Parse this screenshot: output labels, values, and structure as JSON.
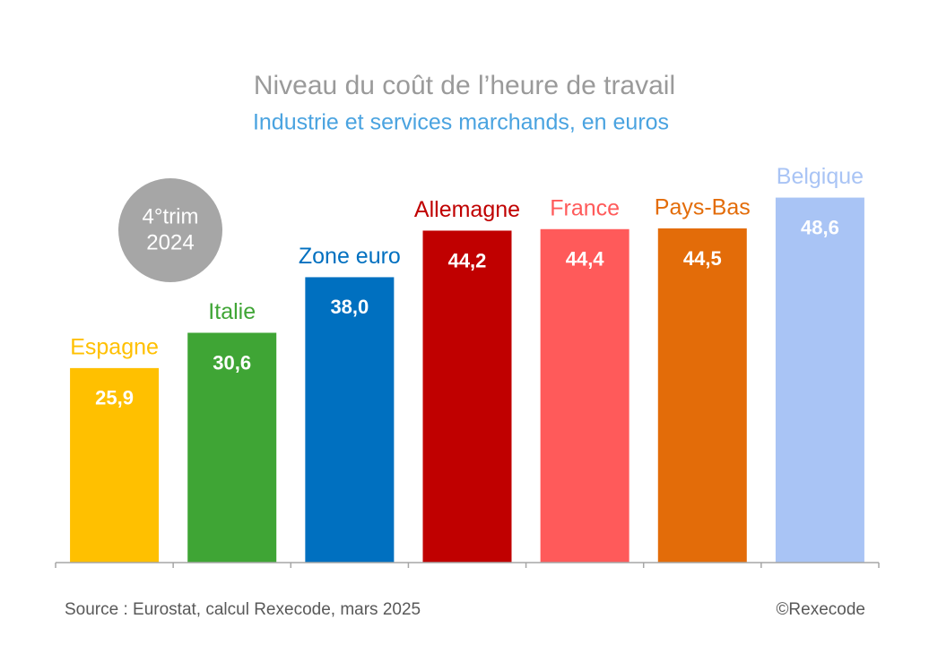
{
  "chart_data": {
    "type": "bar",
    "title": "Niveau du coût de l’heure de travail",
    "subtitle": "Industrie et services marchands, en euros",
    "badge": [
      "4°trim",
      "2024"
    ],
    "categories": [
      "Espagne",
      "Italie",
      "Zone euro",
      "Allemagne",
      "France",
      "Pays-Bas",
      "Belgique"
    ],
    "values": [
      25.9,
      30.6,
      38.0,
      44.2,
      44.4,
      44.5,
      48.6
    ],
    "value_labels": [
      "25,9",
      "30,6",
      "38,0",
      "44,2",
      "44,4",
      "44,5",
      "48,6"
    ],
    "colors": [
      "#ffc000",
      "#3fa535",
      "#0070c0",
      "#c00000",
      "#ff5a5a",
      "#e36c09",
      "#a9c4f5"
    ],
    "ylim": [
      0,
      60
    ],
    "source": "Source : Eurostat, calcul Rexecode, mars 2025",
    "copyright": "©Rexecode"
  }
}
